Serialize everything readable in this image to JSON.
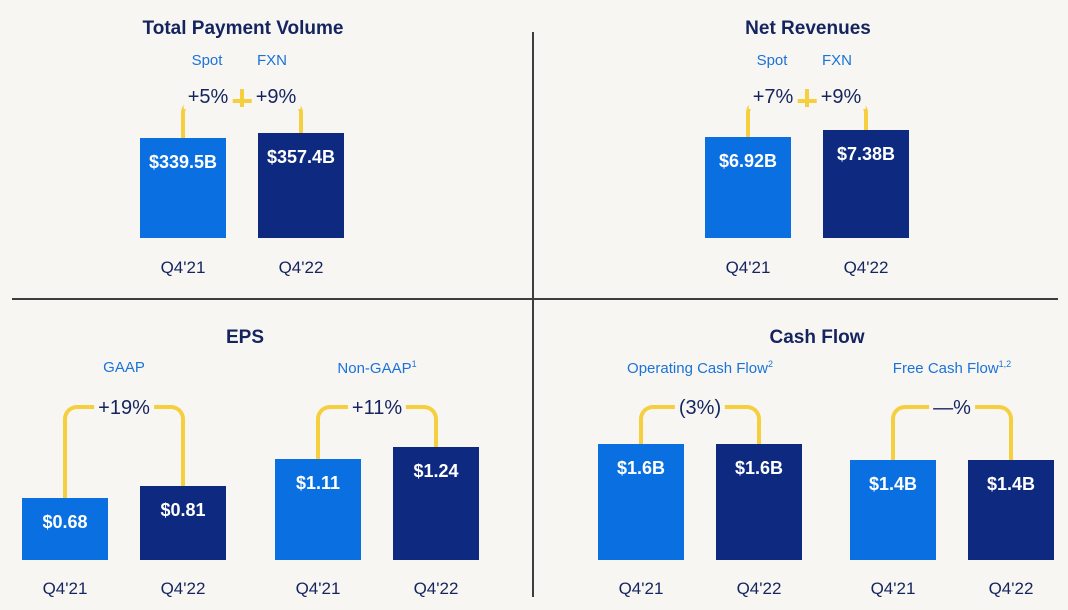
{
  "colors": {
    "spot": "#0a6fe0",
    "fxn": "#0d2a80",
    "bracket": "#f6cf3e",
    "title": "#14245f",
    "subtitle": "#1a73d9",
    "background": "#f8f6f2"
  },
  "chart_data": [
    {
      "type": "bar",
      "title": "Total Payment Volume",
      "categories": [
        "Q4'21",
        "Q4'22"
      ],
      "values": [
        339.5,
        357.4
      ],
      "value_labels": [
        "$339.5B",
        "$357.4B"
      ],
      "unit": "B",
      "growth": [
        {
          "label": "Spot",
          "value": "+5%"
        },
        {
          "label": "FXN",
          "value": "+9%"
        }
      ]
    },
    {
      "type": "bar",
      "title": "Net Revenues",
      "categories": [
        "Q4'21",
        "Q4'22"
      ],
      "values": [
        6.92,
        7.38
      ],
      "value_labels": [
        "$6.92B",
        "$7.38B"
      ],
      "unit": "B",
      "growth": [
        {
          "label": "Spot",
          "value": "+7%"
        },
        {
          "label": "FXN",
          "value": "+9%"
        }
      ]
    },
    {
      "type": "bar",
      "title": "EPS",
      "subtitle": "GAAP",
      "categories": [
        "Q4'21",
        "Q4'22"
      ],
      "values": [
        0.68,
        0.81
      ],
      "value_labels": [
        "$0.68",
        "$0.81"
      ],
      "growth": "+19%"
    },
    {
      "type": "bar",
      "title": "EPS",
      "subtitle": "Non-GAAP",
      "subtitle_sup": "1",
      "categories": [
        "Q4'21",
        "Q4'22"
      ],
      "values": [
        1.11,
        1.24
      ],
      "value_labels": [
        "$1.11",
        "$1.24"
      ],
      "growth": "+11%"
    },
    {
      "type": "bar",
      "title": "Cash Flow",
      "subtitle": "Operating Cash Flow",
      "subtitle_sup": "2",
      "categories": [
        "Q4'21",
        "Q4'22"
      ],
      "values": [
        1.6,
        1.6
      ],
      "value_labels": [
        "$1.6B",
        "$1.6B"
      ],
      "unit": "B",
      "growth": "(3%)"
    },
    {
      "type": "bar",
      "title": "Cash Flow",
      "subtitle": "Free Cash Flow",
      "subtitle_sup": "1,2",
      "categories": [
        "Q4'21",
        "Q4'22"
      ],
      "values": [
        1.4,
        1.4
      ],
      "value_labels": [
        "$1.4B",
        "$1.4B"
      ],
      "unit": "B",
      "growth": "—%"
    }
  ]
}
